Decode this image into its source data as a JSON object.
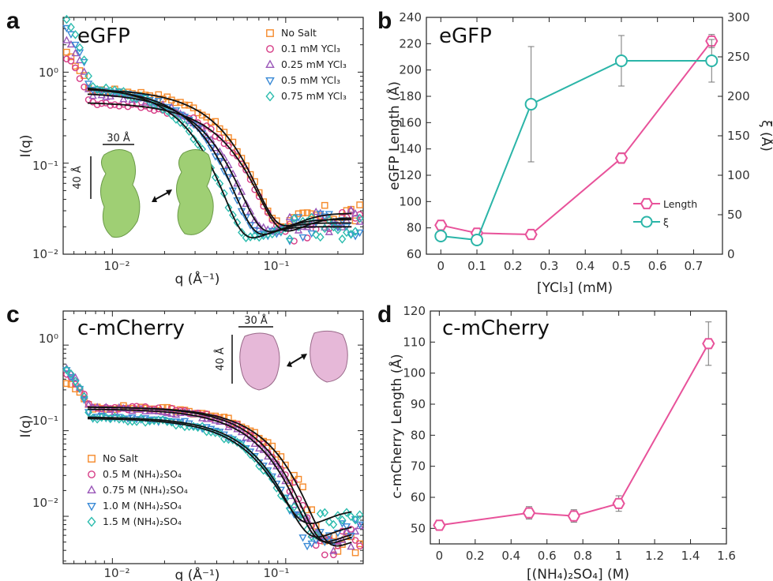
{
  "chart_data": [
    {
      "panel": "a",
      "type": "scatter",
      "title": "eGFP",
      "xlabel": "q (Å⁻¹)",
      "ylabel": "I(q)",
      "xscale": "log",
      "yscale": "log",
      "xlim": [
        0.0052,
        0.28
      ],
      "ylim": [
        0.01,
        4
      ],
      "xtick_labels": [
        "10⁻²",
        "10⁻¹"
      ],
      "ytick_labels": [
        "10⁰",
        "10⁻¹",
        "10⁻²"
      ],
      "legend": "top-right",
      "inset": {
        "scale_x": "30 Å",
        "scale_y": "40 Å"
      },
      "series": [
        {
          "name": "No Salt",
          "marker": "square",
          "color": "#f58a2b",
          "plateau": 0.66,
          "rg": 42,
          "tail": 0.028
        },
        {
          "name": "0.1 mM YCl₃",
          "marker": "circle",
          "color": "#d63c86",
          "plateau": 0.47,
          "rg": 40,
          "tail": 0.025
        },
        {
          "name": "0.25 mM YCl₃",
          "marker": "triangle-up",
          "color": "#9a57b8",
          "plateau": 0.6,
          "rg": 52,
          "tail": 0.024
        },
        {
          "name": "0.5 mM YCl₃",
          "marker": "triangle-down",
          "color": "#3a8ad6",
          "plateau": 0.68,
          "rg": 58,
          "tail": 0.022
        },
        {
          "name": "0.75 mM YCl₃",
          "marker": "diamond",
          "color": "#2cbcae",
          "plateau": 0.72,
          "rg": 68,
          "tail": 0.02
        }
      ]
    },
    {
      "panel": "b",
      "type": "line",
      "title": "eGFP",
      "xlabel": "[YCl₃] (mM)",
      "ylabel": "eGFP Length (Å)",
      "y2label": "ξ (Å)",
      "xlim": [
        -0.04,
        0.78
      ],
      "ylim": [
        60,
        240
      ],
      "y2lim": [
        0,
        300
      ],
      "x": [
        0,
        0.1,
        0.25,
        0.5,
        0.75
      ],
      "legend": "lower-right",
      "series": [
        {
          "name": "Length",
          "axis": "left",
          "color": "#e8529a",
          "marker": "hexagon",
          "values": [
            82,
            76,
            75,
            133,
            222
          ],
          "errors": [
            3,
            3,
            3,
            4,
            5
          ]
        },
        {
          "name": "ξ",
          "axis": "right",
          "color": "#2bb5a8",
          "marker": "circle",
          "values": [
            23,
            18,
            190,
            245,
            245
          ],
          "errors": [
            5,
            5,
            73,
            32,
            27
          ]
        }
      ]
    },
    {
      "panel": "c",
      "type": "scatter",
      "title": "c-mCherry",
      "xlabel": "q (Å⁻¹)",
      "ylabel": "I(q)",
      "xscale": "log",
      "yscale": "log",
      "xlim": [
        0.0052,
        0.28
      ],
      "ylim": [
        0.0028,
        2.5
      ],
      "xtick_labels": [
        "10⁻²",
        "10⁻¹"
      ],
      "ytick_labels": [
        "10⁰",
        "10⁻¹",
        "10⁻²"
      ],
      "legend": "lower-left",
      "inset": {
        "scale_x": "30 Å",
        "scale_y": "40 Å"
      },
      "series": [
        {
          "name": "No Salt",
          "marker": "square",
          "color": "#f58a2b",
          "plateau": 0.19,
          "rg": 22,
          "tail": 0.006
        },
        {
          "name": "0.5 M (NH₄)₂SO₄",
          "marker": "circle",
          "color": "#d63c86",
          "plateau": 0.19,
          "rg": 24,
          "tail": 0.0065
        },
        {
          "name": "0.75 M (NH₄)₂SO₄",
          "marker": "triangle-up",
          "color": "#9a57b8",
          "plateau": 0.18,
          "rg": 25,
          "tail": 0.0068
        },
        {
          "name": "1.0 M (NH₄)₂SO₄",
          "marker": "triangle-down",
          "color": "#3a8ad6",
          "plateau": 0.145,
          "rg": 27,
          "tail": 0.008
        },
        {
          "name": "1.5 M (NH₄)₂SO₄",
          "marker": "diamond",
          "color": "#2cbcae",
          "plateau": 0.14,
          "rg": 28,
          "tail": 0.012
        }
      ]
    },
    {
      "panel": "d",
      "type": "line",
      "title": "c-mCherry",
      "xlabel": "[(NH₄)₂SO₄] (M)",
      "ylabel": "c-mCherry Length (Å)",
      "xlim": [
        -0.05,
        1.6
      ],
      "ylim": [
        45,
        120
      ],
      "x": [
        0,
        0.5,
        0.75,
        1.0,
        1.5
      ],
      "series": [
        {
          "name": "Length",
          "color": "#e8529a",
          "marker": "hexagon",
          "values": [
            51,
            55,
            54,
            58,
            109.5
          ],
          "errors": [
            1,
            2,
            2,
            2.5,
            7
          ]
        }
      ]
    }
  ]
}
